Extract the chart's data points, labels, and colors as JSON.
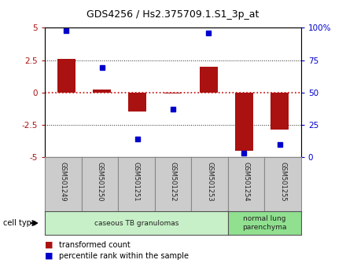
{
  "title": "GDS4256 / Hs2.375709.1.S1_3p_at",
  "samples": [
    "GSM501249",
    "GSM501250",
    "GSM501251",
    "GSM501252",
    "GSM501253",
    "GSM501254",
    "GSM501255"
  ],
  "red_bars": [
    2.6,
    0.2,
    -1.5,
    -0.1,
    2.0,
    -4.5,
    -2.9
  ],
  "blue_dots_left": [
    4.8,
    1.9,
    -3.6,
    -1.3,
    4.6,
    -4.7,
    -4.0
  ],
  "ylim_left": [
    -5,
    5
  ],
  "ylim_right": [
    0,
    100
  ],
  "yticks_left": [
    -5,
    -2.5,
    0,
    2.5,
    5
  ],
  "yticks_right": [
    0,
    25,
    50,
    75,
    100
  ],
  "ytick_labels_right": [
    "0",
    "25",
    "50",
    "75",
    "100%"
  ],
  "cell_types": [
    {
      "label": "caseous TB granulomas",
      "n_samples": 5,
      "color": "#c8f0c8"
    },
    {
      "label": "normal lung\nparenchyma",
      "n_samples": 2,
      "color": "#90e090"
    }
  ],
  "cell_type_label": "cell type",
  "legend_red": "transformed count",
  "legend_blue": "percentile rank within the sample",
  "bar_color": "#aa1111",
  "dot_color": "#0000cc",
  "bg_color": "#ffffff",
  "plot_bg": "#ffffff",
  "bar_width": 0.5,
  "hline_zero_color": "#cc0000",
  "hline_25_color": "#222222",
  "sample_box_color": "#cccccc",
  "sample_box_border": "#888888",
  "spine_color": "#888888"
}
